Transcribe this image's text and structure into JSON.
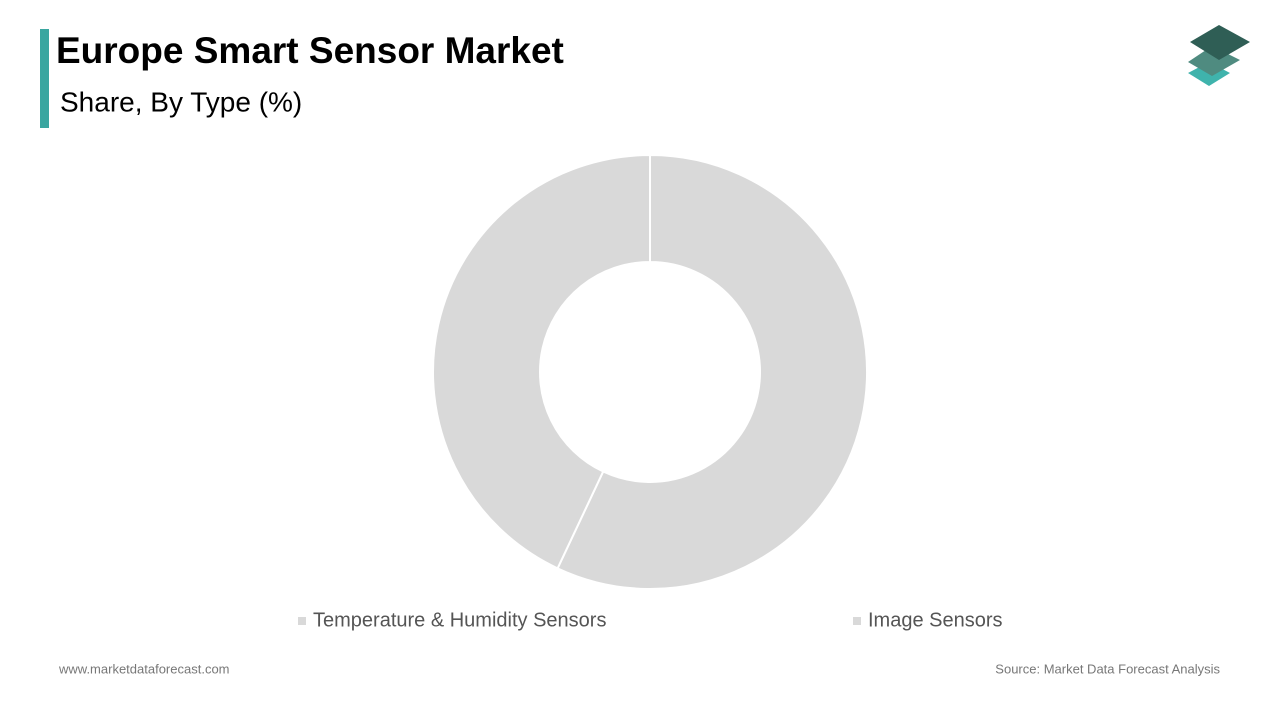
{
  "chart_data": {
    "type": "donut",
    "title": "Europe Smart Sensor Market",
    "subtitle": "Share, By Type (%)",
    "categories": [
      "Temperature & Humidity Sensors",
      "Image Sensors"
    ],
    "values": [
      57,
      43
    ],
    "colors": [
      "#d9d9d9",
      "#d9d9d9"
    ],
    "legend": "bottom"
  },
  "footer": {
    "website": "www.marketdataforecast.com",
    "source": "Source: Market Data Forecast Analysis"
  }
}
